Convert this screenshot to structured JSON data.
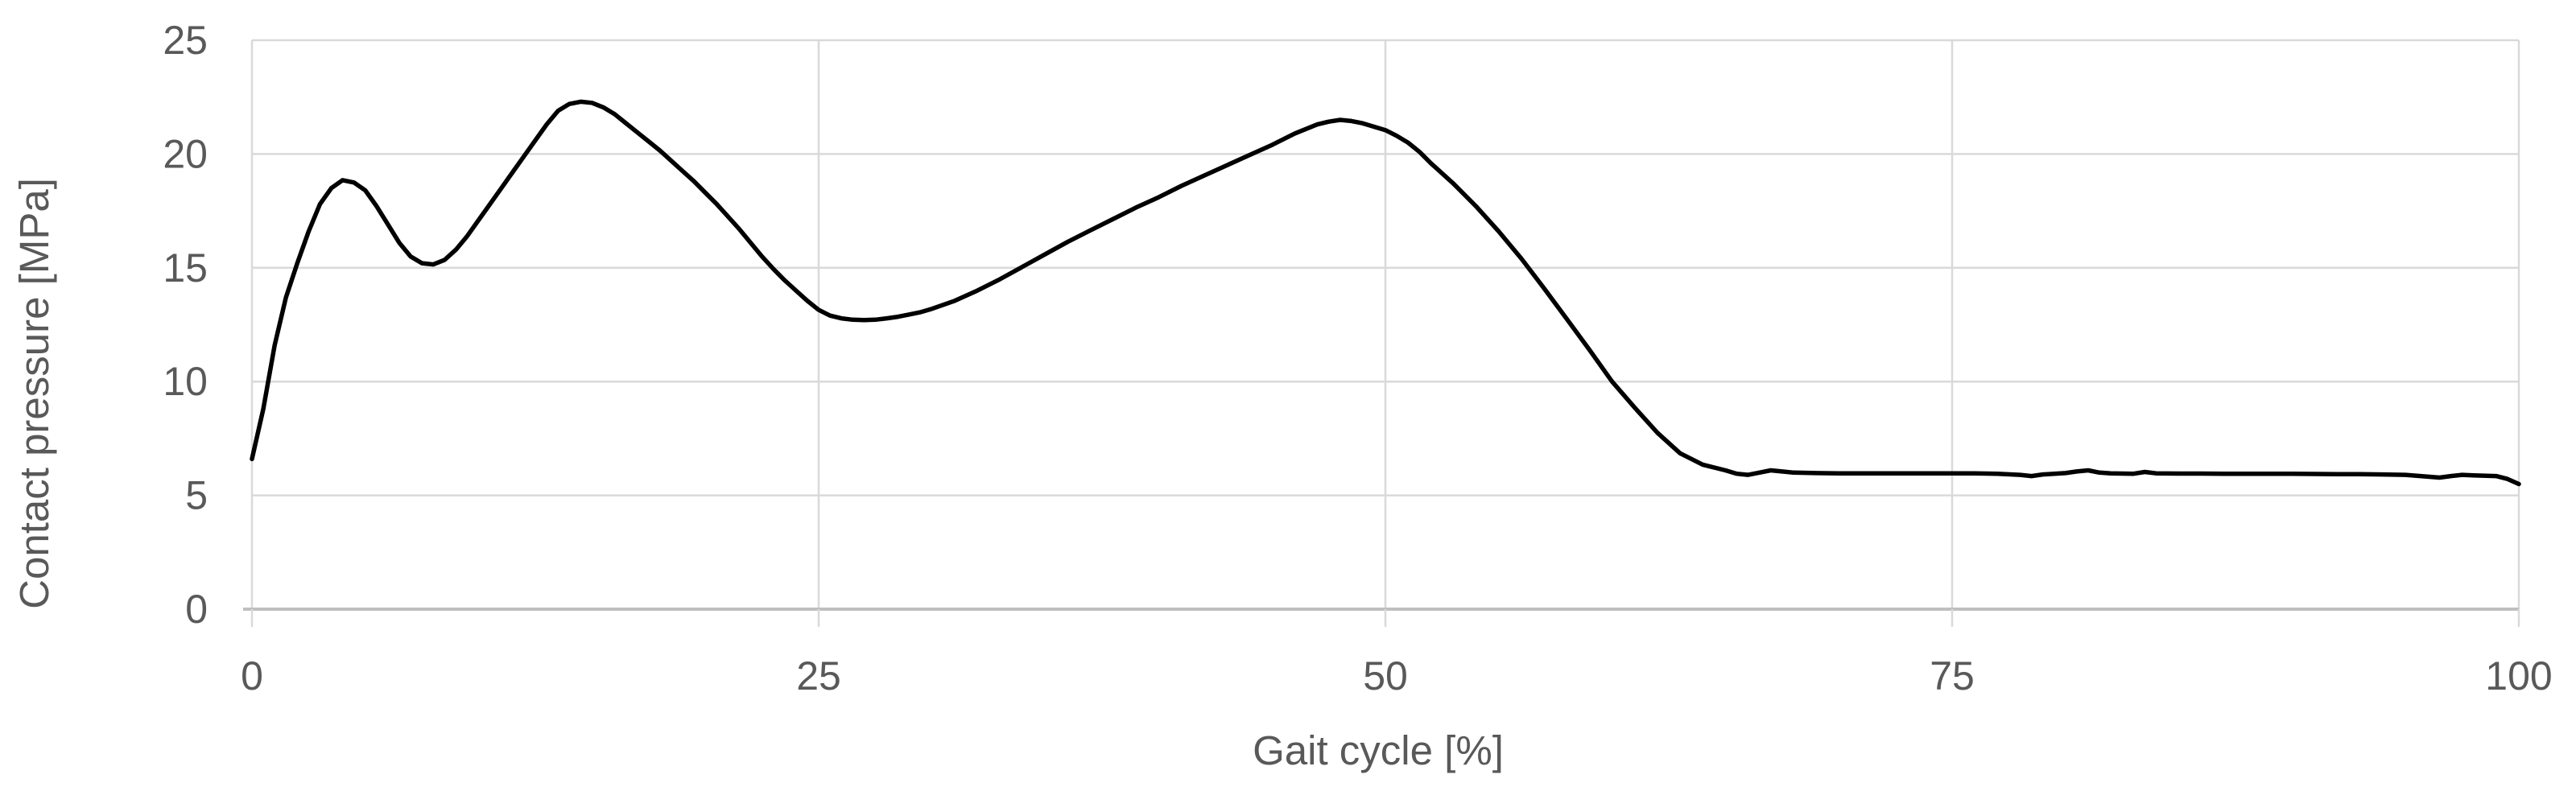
{
  "chart_data": {
    "type": "line",
    "title": "",
    "xlabel": "Gait cycle [%]",
    "ylabel": "Contact pressure [MPa]",
    "xlim": [
      0,
      100
    ],
    "ylim": [
      0,
      25
    ],
    "x_ticks": [
      0,
      25,
      50,
      75,
      100
    ],
    "y_ticks": [
      0,
      5,
      10,
      15,
      20,
      25
    ],
    "grid": true,
    "legend": "none",
    "series": [
      {
        "name": "Contact pressure",
        "color": "#000000",
        "points": [
          [
            0,
            6.6
          ],
          [
            0.5,
            8.8
          ],
          [
            1,
            11.6
          ],
          [
            1.5,
            13.7
          ],
          [
            2,
            15.2
          ],
          [
            2.5,
            16.6
          ],
          [
            3,
            17.8
          ],
          [
            3.5,
            18.5
          ],
          [
            4,
            18.85
          ],
          [
            4.5,
            18.75
          ],
          [
            5,
            18.4
          ],
          [
            5.5,
            17.7
          ],
          [
            6,
            16.9
          ],
          [
            6.5,
            16.1
          ],
          [
            7,
            15.5
          ],
          [
            7.5,
            15.2
          ],
          [
            8,
            15.15
          ],
          [
            8.5,
            15.35
          ],
          [
            9,
            15.8
          ],
          [
            9.5,
            16.4
          ],
          [
            10,
            17.1
          ],
          [
            10.5,
            17.8
          ],
          [
            11,
            18.5
          ],
          [
            11.5,
            19.2
          ],
          [
            12,
            19.9
          ],
          [
            12.5,
            20.6
          ],
          [
            13,
            21.3
          ],
          [
            13.5,
            21.9
          ],
          [
            14,
            22.2
          ],
          [
            14.5,
            22.3
          ],
          [
            15,
            22.25
          ],
          [
            15.5,
            22.05
          ],
          [
            16,
            21.75
          ],
          [
            16.5,
            21.35
          ],
          [
            17,
            20.95
          ],
          [
            17.5,
            20.55
          ],
          [
            18,
            20.15
          ],
          [
            18.5,
            19.7
          ],
          [
            19,
            19.25
          ],
          [
            19.5,
            18.8
          ],
          [
            20,
            18.3
          ],
          [
            20.5,
            17.8
          ],
          [
            21,
            17.25
          ],
          [
            21.5,
            16.7
          ],
          [
            22,
            16.1
          ],
          [
            22.5,
            15.5
          ],
          [
            23,
            14.95
          ],
          [
            23.5,
            14.45
          ],
          [
            24,
            14.0
          ],
          [
            24.5,
            13.55
          ],
          [
            25,
            13.15
          ],
          [
            25.5,
            12.9
          ],
          [
            26,
            12.78
          ],
          [
            26.5,
            12.72
          ],
          [
            27,
            12.7
          ],
          [
            27.5,
            12.72
          ],
          [
            28,
            12.78
          ],
          [
            28.5,
            12.85
          ],
          [
            29,
            12.95
          ],
          [
            29.5,
            13.05
          ],
          [
            30,
            13.2
          ],
          [
            31,
            13.55
          ],
          [
            32,
            14.0
          ],
          [
            33,
            14.5
          ],
          [
            34,
            15.05
          ],
          [
            35,
            15.6
          ],
          [
            36,
            16.15
          ],
          [
            37,
            16.65
          ],
          [
            38,
            17.15
          ],
          [
            39,
            17.65
          ],
          [
            40,
            18.1
          ],
          [
            41,
            18.6
          ],
          [
            42,
            19.05
          ],
          [
            43,
            19.5
          ],
          [
            44,
            19.95
          ],
          [
            45,
            20.4
          ],
          [
            46,
            20.9
          ],
          [
            47,
            21.3
          ],
          [
            47.5,
            21.42
          ],
          [
            48,
            21.5
          ],
          [
            48.5,
            21.45
          ],
          [
            49,
            21.35
          ],
          [
            49.5,
            21.2
          ],
          [
            50,
            21.05
          ],
          [
            50.5,
            20.8
          ],
          [
            51,
            20.5
          ],
          [
            51.5,
            20.1
          ],
          [
            52,
            19.6
          ],
          [
            53,
            18.7
          ],
          [
            54,
            17.7
          ],
          [
            55,
            16.6
          ],
          [
            56,
            15.4
          ],
          [
            57,
            14.1
          ],
          [
            58,
            12.75
          ],
          [
            59,
            11.4
          ],
          [
            60,
            10.0
          ],
          [
            61,
            8.85
          ],
          [
            62,
            7.75
          ],
          [
            63,
            6.85
          ],
          [
            64,
            6.35
          ],
          [
            65,
            6.1
          ],
          [
            65.5,
            5.95
          ],
          [
            66,
            5.9
          ],
          [
            66.5,
            6.0
          ],
          [
            67,
            6.1
          ],
          [
            67.5,
            6.05
          ],
          [
            68,
            6.0
          ],
          [
            69,
            5.98
          ],
          [
            70,
            5.97
          ],
          [
            71,
            5.97
          ],
          [
            72,
            5.97
          ],
          [
            73,
            5.97
          ],
          [
            74,
            5.97
          ],
          [
            75,
            5.97
          ],
          [
            76,
            5.97
          ],
          [
            77,
            5.95
          ],
          [
            78,
            5.9
          ],
          [
            78.5,
            5.85
          ],
          [
            79,
            5.92
          ],
          [
            80,
            5.98
          ],
          [
            80.5,
            6.05
          ],
          [
            81,
            6.1
          ],
          [
            81.5,
            6.0
          ],
          [
            82,
            5.97
          ],
          [
            83,
            5.95
          ],
          [
            83.5,
            6.03
          ],
          [
            84,
            5.97
          ],
          [
            85,
            5.96
          ],
          [
            86,
            5.96
          ],
          [
            87,
            5.95
          ],
          [
            88,
            5.95
          ],
          [
            89,
            5.95
          ],
          [
            90,
            5.95
          ],
          [
            91,
            5.94
          ],
          [
            92,
            5.93
          ],
          [
            93,
            5.93
          ],
          [
            94,
            5.92
          ],
          [
            95,
            5.9
          ],
          [
            96,
            5.82
          ],
          [
            96.5,
            5.78
          ],
          [
            97,
            5.85
          ],
          [
            97.5,
            5.9
          ],
          [
            98,
            5.88
          ],
          [
            99,
            5.85
          ],
          [
            99.5,
            5.72
          ],
          [
            100,
            5.5
          ]
        ]
      }
    ]
  },
  "style": {
    "background_color": "#ffffff",
    "text_color": "#595959",
    "gridline_color": "#d9d9d9",
    "axis_color": "#bfbfbf",
    "series_color": "#000000",
    "line_width": 5.5
  }
}
